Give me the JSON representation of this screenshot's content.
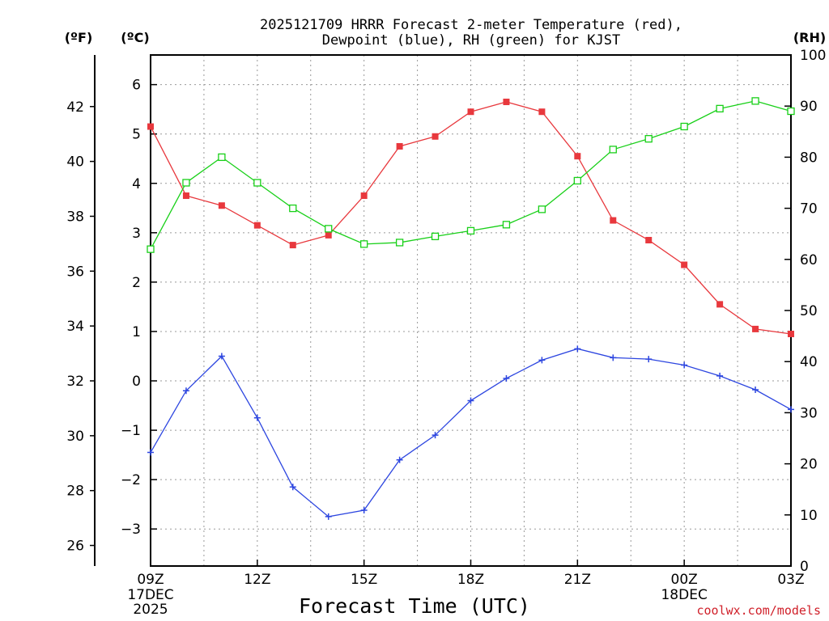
{
  "chart_data": {
    "type": "line",
    "title_line1": "2025121709 HRRR Forecast 2-meter Temperature (red),",
    "title_line2": "Dewpoint (blue), RH (green) for KJST",
    "xlabel": "Forecast Time (UTC)",
    "credit": "coolwx.com/models",
    "unit_left_f": "(ºF)",
    "unit_left_c": "(ºC)",
    "unit_right": "(RH)",
    "x_hours": [
      0,
      1,
      2,
      3,
      4,
      5,
      6,
      7,
      8,
      9,
      10,
      11,
      12,
      13,
      14,
      15,
      16,
      17,
      18
    ],
    "x_ticks": [
      {
        "hour": 0,
        "label": "09Z",
        "sub1": "17DEC",
        "sub2": "2025"
      },
      {
        "hour": 3,
        "label": "12Z",
        "sub1": "",
        "sub2": ""
      },
      {
        "hour": 6,
        "label": "15Z",
        "sub1": "",
        "sub2": ""
      },
      {
        "hour": 9,
        "label": "18Z",
        "sub1": "",
        "sub2": ""
      },
      {
        "hour": 12,
        "label": "21Z",
        "sub1": "",
        "sub2": ""
      },
      {
        "hour": 15,
        "label": "00Z",
        "sub1": "18DEC",
        "sub2": ""
      },
      {
        "hour": 18,
        "label": "03Z",
        "sub1": "",
        "sub2": ""
      }
    ],
    "xlim": [
      0,
      18
    ],
    "ylim_c": [
      -3.75,
      6.6
    ],
    "ylim_f": [
      25.25,
      43.88
    ],
    "ylim_rh": [
      0,
      100
    ],
    "yticks_c": [
      -3,
      -2,
      -1,
      0,
      1,
      2,
      3,
      4,
      5,
      6
    ],
    "yticks_f": [
      26,
      28,
      30,
      32,
      34,
      36,
      38,
      40,
      42
    ],
    "yticks_rh": [
      0,
      10,
      20,
      30,
      40,
      50,
      60,
      70,
      80,
      90,
      100
    ],
    "series": [
      {
        "name": "Temperature",
        "unit": "C",
        "color": "#e8383d",
        "marker": "filled-square",
        "values": [
          5.15,
          3.75,
          3.55,
          3.15,
          2.75,
          2.95,
          3.75,
          4.75,
          4.95,
          5.45,
          5.65,
          5.45,
          4.55,
          3.25,
          2.85,
          2.35,
          1.55,
          1.05,
          0.95
        ]
      },
      {
        "name": "Dewpoint",
        "unit": "C",
        "color": "#2d46e0",
        "marker": "plus",
        "values": [
          -1.45,
          -0.2,
          0.5,
          -0.75,
          -2.15,
          -2.75,
          -2.62,
          -1.6,
          -1.1,
          -0.4,
          0.05,
          0.42,
          0.65,
          0.47,
          0.44,
          0.32,
          0.1,
          -0.18,
          -0.58
        ]
      },
      {
        "name": "RH",
        "unit": "%",
        "color": "#18d018",
        "marker": "open-square",
        "values": [
          62,
          75,
          80,
          75,
          70,
          66,
          63,
          63.3,
          64.5,
          65.6,
          66.8,
          69.8,
          75.4,
          81.5,
          83.6,
          86,
          89.5,
          91,
          89
        ]
      }
    ]
  }
}
